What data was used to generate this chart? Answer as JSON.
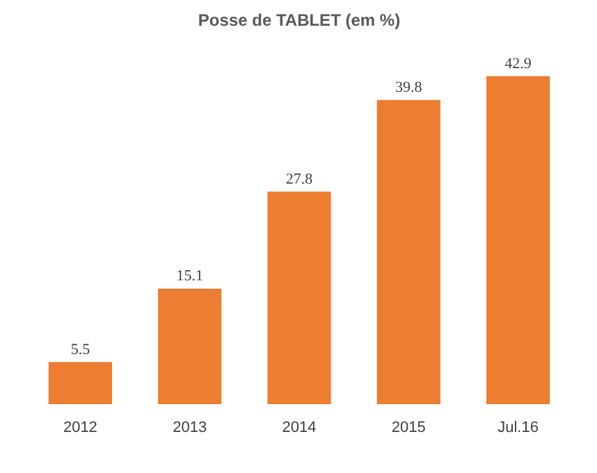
{
  "chart_data": {
    "type": "bar",
    "title": "Posse de TABLET (em %)",
    "categories": [
      "2012",
      "2013",
      "2014",
      "2015",
      "Jul.16"
    ],
    "values": [
      5.5,
      15.1,
      27.8,
      39.8,
      42.9
    ],
    "color": "#ed7d31",
    "data_labels": true,
    "grid": false
  }
}
